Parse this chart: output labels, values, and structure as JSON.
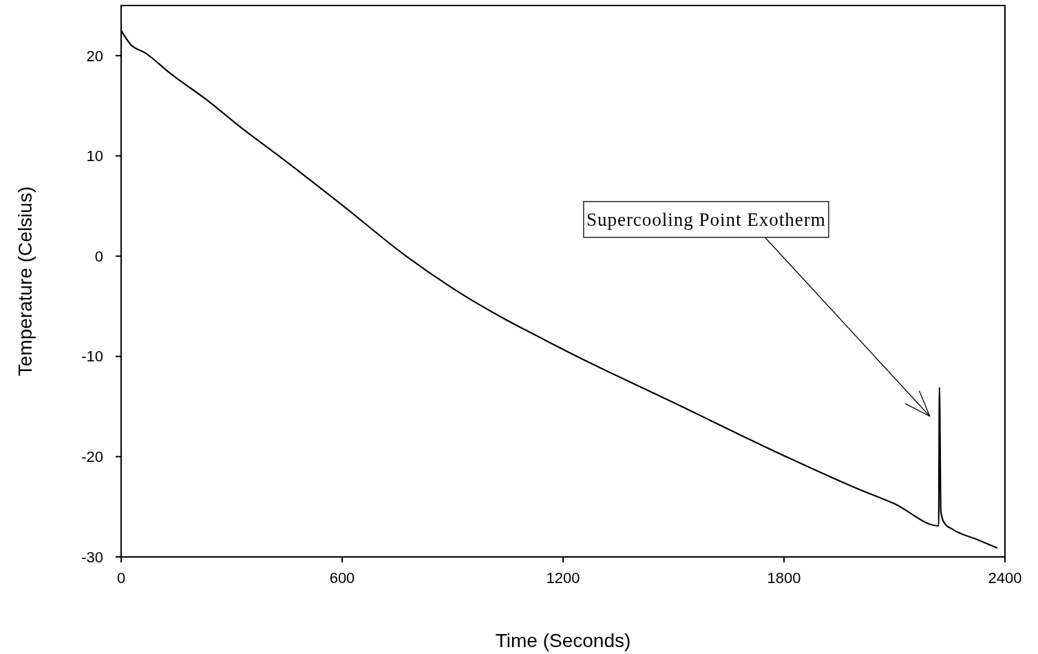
{
  "chart_data": {
    "type": "line",
    "xlabel": "Time (Seconds)",
    "ylabel": "Temperature (Celsius)",
    "xlim": [
      0,
      2400
    ],
    "xticks": [
      0,
      600,
      1200,
      1800,
      2400
    ],
    "ylim": [
      -30,
      25
    ],
    "yticks": [
      -30,
      -20,
      -10,
      0,
      10,
      20
    ],
    "grid": false,
    "marker": "none",
    "line_style": "solid",
    "series": [
      {
        "color": "#000000",
        "x": [
          0,
          26,
          64,
          138,
          232,
          330,
          428,
          600,
          774,
          900,
          1200,
          1500,
          1800,
          2000,
          2100,
          2220,
          2222,
          2226,
          2235,
          2260,
          2320,
          2379
        ],
        "values": [
          22.5,
          21.1,
          20.3,
          18.1,
          15.6,
          12.7,
          10,
          5.1,
          0,
          -3.2,
          -9.3,
          -14.6,
          -19.9,
          -23.2,
          -24.7,
          -26.9,
          -13.1,
          -25.5,
          -26.6,
          -27.3,
          -28.2,
          -29.1
        ]
      }
    ],
    "annotations": [
      "Supercooling Point Exotherm"
    ]
  }
}
